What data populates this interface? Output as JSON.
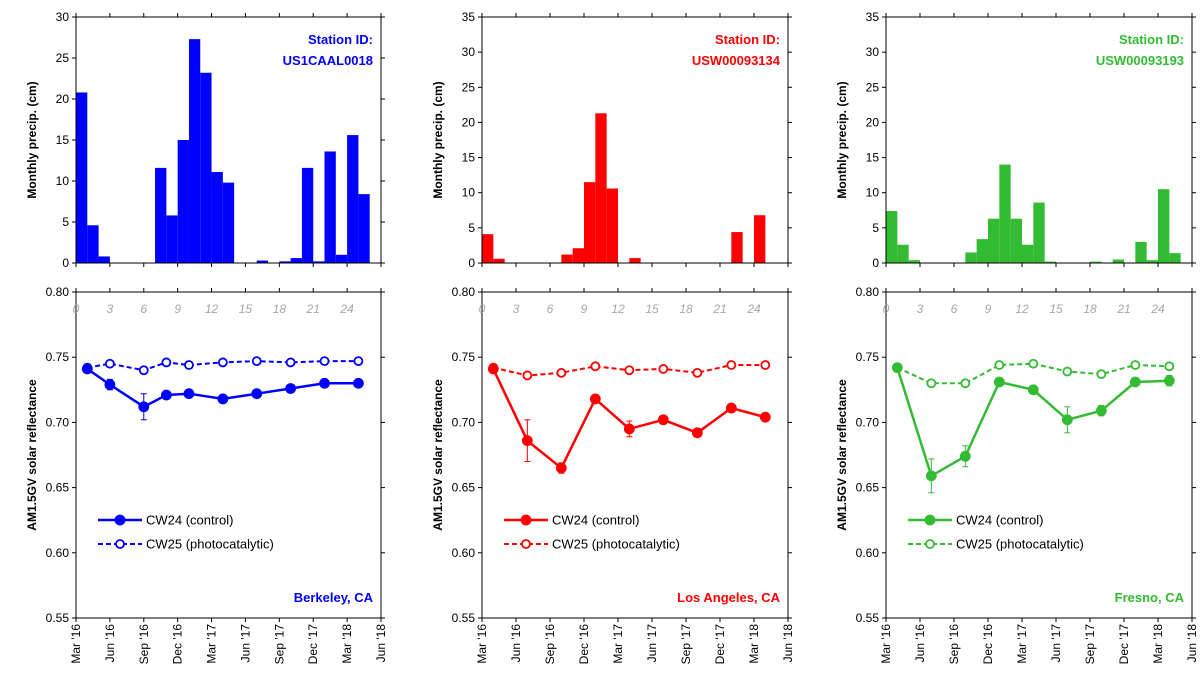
{
  "x_tick_labels": [
    "Mar '16",
    "Jun '16",
    "Sep '16",
    "Dec '16",
    "Mar '17",
    "Jun '17",
    "Sep '17",
    "Dec '17",
    "Mar '18",
    "Jun '18"
  ],
  "month_tick_labels": [
    "0",
    "3",
    "6",
    "9",
    "12",
    "15",
    "18",
    "21",
    "24"
  ],
  "ylabel_precip": "Monthly precip. (cm)",
  "ylabel_reflectance": "AM1.5GV solar reflectance",
  "legend_control": "CW24 (control)",
  "legend_photocatalytic": "CW25 (photocatalytic)",
  "station_label": "Station ID:",
  "chart_data": [
    {
      "type": "bar",
      "panel": "Berkeley precipitation",
      "color": "#0000ff",
      "station_id": "US1CAAL0018",
      "ylabel": "Monthly precip. (cm)",
      "ylim": [
        0,
        30
      ],
      "yticks": [
        0,
        5,
        10,
        15,
        20,
        25,
        30
      ],
      "months": [
        "2016-03",
        "2016-04",
        "2016-05",
        "2016-06",
        "2016-07",
        "2016-08",
        "2016-09",
        "2016-10",
        "2016-11",
        "2016-12",
        "2017-01",
        "2017-02",
        "2017-03",
        "2017-04",
        "2017-05",
        "2017-06",
        "2017-07",
        "2017-08",
        "2017-09",
        "2017-10",
        "2017-11",
        "2017-12",
        "2018-01",
        "2018-02",
        "2018-03",
        "2018-04",
        "2018-05"
      ],
      "values": [
        20.8,
        4.6,
        0.8,
        0,
        0,
        0,
        0,
        11.6,
        5.8,
        15.0,
        27.3,
        23.2,
        11.1,
        9.8,
        0,
        0,
        0.3,
        0,
        0.2,
        0.6,
        11.6,
        0.2,
        13.6,
        1.0,
        15.6,
        8.4,
        0
      ]
    },
    {
      "type": "bar",
      "panel": "Los Angeles precipitation",
      "color": "#ff0000",
      "station_id": "USW00093134",
      "ylabel": "Monthly precip. (cm)",
      "ylim": [
        0,
        35
      ],
      "yticks": [
        0,
        5,
        10,
        15,
        20,
        25,
        30,
        35
      ],
      "months": [
        "2016-03",
        "2016-04",
        "2016-05",
        "2016-06",
        "2016-07",
        "2016-08",
        "2016-09",
        "2016-10",
        "2016-11",
        "2016-12",
        "2017-01",
        "2017-02",
        "2017-03",
        "2017-04",
        "2017-05",
        "2017-06",
        "2017-07",
        "2017-08",
        "2017-09",
        "2017-10",
        "2017-11",
        "2017-12",
        "2018-01",
        "2018-02",
        "2018-03",
        "2018-04",
        "2018-05"
      ],
      "values": [
        4.1,
        0.6,
        0,
        0,
        0,
        0,
        0,
        1.2,
        2.1,
        11.5,
        21.3,
        10.6,
        0,
        0.7,
        0,
        0,
        0,
        0,
        0,
        0,
        0,
        0,
        4.4,
        0,
        6.8,
        0,
        0
      ]
    },
    {
      "type": "bar",
      "panel": "Fresno precipitation",
      "color": "#33bb33",
      "station_id": "USW00093193",
      "ylabel": "Monthly precip. (cm)",
      "ylim": [
        0,
        35
      ],
      "yticks": [
        0,
        5,
        10,
        15,
        20,
        25,
        30,
        35
      ],
      "months": [
        "2016-03",
        "2016-04",
        "2016-05",
        "2016-06",
        "2016-07",
        "2016-08",
        "2016-09",
        "2016-10",
        "2016-11",
        "2016-12",
        "2017-01",
        "2017-02",
        "2017-03",
        "2017-04",
        "2017-05",
        "2017-06",
        "2017-07",
        "2017-08",
        "2017-09",
        "2017-10",
        "2017-11",
        "2017-12",
        "2018-01",
        "2018-02",
        "2018-03",
        "2018-04",
        "2018-05"
      ],
      "values": [
        7.4,
        2.6,
        0.4,
        0,
        0,
        0,
        0,
        1.5,
        3.4,
        6.3,
        14.0,
        6.3,
        2.6,
        8.6,
        0.2,
        0,
        0,
        0,
        0.2,
        0,
        0.5,
        0,
        3.0,
        0.4,
        10.5,
        1.4,
        0
      ]
    },
    {
      "type": "line",
      "panel": "Berkeley reflectance",
      "color": "#0000ff",
      "location": "Berkeley, CA",
      "ylabel": "AM1.5GV solar reflectance",
      "ylim": [
        0.55,
        0.8
      ],
      "yticks": [
        0.55,
        0.6,
        0.65,
        0.7,
        0.75,
        0.8
      ],
      "series": [
        {
          "name": "CW24 (control)",
          "style": "solid",
          "x_months": [
            0,
            2,
            5,
            7,
            9,
            12,
            15,
            18,
            21,
            24
          ],
          "values": [
            0.741,
            0.729,
            0.712,
            0.721,
            0.722,
            0.718,
            0.722,
            0.726,
            0.73,
            0.73
          ],
          "errors": [
            0.002,
            0.004,
            0.01,
            0.002,
            0.002,
            0.002,
            0.002,
            0.002,
            0.002,
            0.002
          ]
        },
        {
          "name": "CW25 (photocatalytic)",
          "style": "dashed",
          "x_months": [
            0,
            2,
            5,
            7,
            9,
            12,
            15,
            18,
            21,
            24
          ],
          "values": [
            0.742,
            0.745,
            0.74,
            0.746,
            0.744,
            0.746,
            0.747,
            0.746,
            0.747,
            0.747
          ],
          "errors": [
            0.001,
            0.001,
            0.001,
            0.001,
            0.001,
            0.001,
            0.001,
            0.001,
            0.001,
            0.001
          ]
        }
      ]
    },
    {
      "type": "line",
      "panel": "Los Angeles reflectance",
      "color": "#ff0000",
      "location": "Los Angeles, CA",
      "ylabel": "AM1.5GV solar reflectance",
      "ylim": [
        0.55,
        0.8
      ],
      "yticks": [
        0.55,
        0.6,
        0.65,
        0.7,
        0.75,
        0.8
      ],
      "series": [
        {
          "name": "CW24 (control)",
          "style": "solid",
          "x_months": [
            0,
            3,
            6,
            9,
            12,
            15,
            18,
            21,
            24
          ],
          "values": [
            0.741,
            0.686,
            0.665,
            0.718,
            0.695,
            0.702,
            0.692,
            0.711,
            0.704
          ],
          "errors": [
            0.002,
            0.016,
            0.004,
            0.002,
            0.006,
            0.002,
            0.002,
            0.002,
            0.002
          ]
        },
        {
          "name": "CW25 (photocatalytic)",
          "style": "dashed",
          "x_months": [
            0,
            3,
            6,
            9,
            12,
            15,
            18,
            21,
            24
          ],
          "values": [
            0.742,
            0.736,
            0.738,
            0.743,
            0.74,
            0.741,
            0.738,
            0.744,
            0.744
          ],
          "errors": [
            0.001,
            0.001,
            0.001,
            0.001,
            0.001,
            0.001,
            0.001,
            0.001,
            0.001
          ]
        }
      ]
    },
    {
      "type": "line",
      "panel": "Fresno reflectance",
      "color": "#33bb33",
      "location": "Fresno, CA",
      "ylabel": "AM1.5GV solar reflectance",
      "ylim": [
        0.55,
        0.8
      ],
      "yticks": [
        0.55,
        0.6,
        0.65,
        0.7,
        0.75,
        0.8
      ],
      "series": [
        {
          "name": "CW24 (control)",
          "style": "solid",
          "x_months": [
            0,
            3,
            6,
            9,
            12,
            15,
            18,
            21,
            24
          ],
          "values": [
            0.742,
            0.659,
            0.674,
            0.731,
            0.725,
            0.702,
            0.709,
            0.731,
            0.732
          ],
          "errors": [
            0.002,
            0.013,
            0.008,
            0.002,
            0.002,
            0.01,
            0.004,
            0.002,
            0.004
          ]
        },
        {
          "name": "CW25 (photocatalytic)",
          "style": "dashed",
          "x_months": [
            0,
            3,
            6,
            9,
            12,
            15,
            18,
            21,
            24
          ],
          "values": [
            0.742,
            0.73,
            0.73,
            0.744,
            0.745,
            0.739,
            0.737,
            0.744,
            0.743
          ],
          "errors": [
            0.001,
            0.001,
            0.001,
            0.001,
            0.001,
            0.001,
            0.001,
            0.001,
            0.001
          ]
        }
      ]
    }
  ]
}
